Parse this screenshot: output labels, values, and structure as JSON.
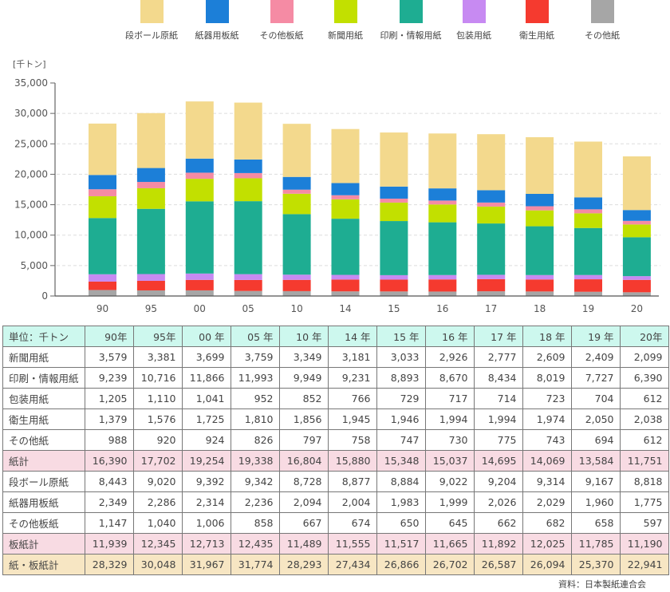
{
  "chart_data": {
    "type": "bar",
    "stacked": true,
    "title": "",
    "xlabel": "",
    "ylabel": "[千トン]",
    "ylim": [
      0,
      35000
    ],
    "yticks": [
      0,
      5000,
      10000,
      15000,
      20000,
      25000,
      30000,
      35000
    ],
    "ytick_labels": [
      "0",
      "5,000",
      "10,000",
      "15,000",
      "20,000",
      "25,000",
      "30,000",
      "35,000"
    ],
    "grid": true,
    "legend_position": "top",
    "categories": [
      "90",
      "95",
      "00",
      "05",
      "10",
      "14",
      "15",
      "16",
      "17",
      "18",
      "19",
      "20"
    ],
    "series": [
      {
        "name": "その他紙",
        "color": "#a6a6a6",
        "values": [
          988,
          920,
          924,
          826,
          797,
          758,
          747,
          730,
          775,
          743,
          694,
          612
        ]
      },
      {
        "name": "衛生用紙",
        "color": "#f53a2f",
        "values": [
          1379,
          1576,
          1725,
          1810,
          1856,
          1945,
          1946,
          1994,
          1994,
          1974,
          2050,
          2038
        ]
      },
      {
        "name": "包装用紙",
        "color": "#c78af2",
        "values": [
          1205,
          1110,
          1041,
          952,
          852,
          766,
          729,
          717,
          714,
          723,
          704,
          612
        ]
      },
      {
        "name": "印刷・情報用紙",
        "color": "#1ead92",
        "values": [
          9239,
          10716,
          11866,
          11993,
          9949,
          9231,
          8893,
          8670,
          8434,
          8019,
          7727,
          6390
        ]
      },
      {
        "name": "新聞用紙",
        "color": "#c2e000",
        "values": [
          3579,
          3381,
          3699,
          3759,
          3349,
          3181,
          3033,
          2926,
          2777,
          2609,
          2409,
          2099
        ]
      },
      {
        "name": "その他板紙",
        "color": "#f58ba4",
        "values": [
          1147,
          1040,
          1006,
          858,
          667,
          674,
          650,
          645,
          662,
          682,
          658,
          597
        ]
      },
      {
        "name": "紙器用板紙",
        "color": "#1c7fd8",
        "values": [
          2349,
          2286,
          2314,
          2236,
          2094,
          2004,
          1983,
          1999,
          2026,
          2029,
          1960,
          1775
        ]
      },
      {
        "name": "段ボール原紙",
        "color": "#f3d98d",
        "values": [
          8443,
          9020,
          9392,
          9342,
          8728,
          8877,
          8884,
          9022,
          9204,
          9314,
          9167,
          8818
        ]
      }
    ]
  },
  "legend": [
    {
      "label": "段ボール原紙",
      "color": "#f3d98d"
    },
    {
      "label": "紙器用板紙",
      "color": "#1c7fd8"
    },
    {
      "label": "その他板紙",
      "color": "#f58ba4"
    },
    {
      "label": "新聞用紙",
      "color": "#c2e000"
    },
    {
      "label": "印刷・情報用紙",
      "color": "#1ead92"
    },
    {
      "label": "包装用紙",
      "color": "#c78af2"
    },
    {
      "label": "衛生用紙",
      "color": "#f53a2f"
    },
    {
      "label": "その他紙",
      "color": "#a6a6a6"
    }
  ],
  "table": {
    "header": [
      "単位：千トン",
      "90年",
      "95年",
      "00 年",
      "05 年",
      "10 年",
      "14 年",
      "15 年",
      "16 年",
      "17 年",
      "18 年",
      "19 年",
      "20年"
    ],
    "rows": [
      {
        "type": "normal",
        "label": "新聞用紙",
        "values": [
          "3,579",
          "3,381",
          "3,699",
          "3,759",
          "3,349",
          "3,181",
          "3,033",
          "2,926",
          "2,777",
          "2,609",
          "2,409",
          "2,099"
        ]
      },
      {
        "type": "normal",
        "label": "印刷・情報用紙",
        "values": [
          "9,239",
          "10,716",
          "11,866",
          "11,993",
          "9,949",
          "9,231",
          "8,893",
          "8,670",
          "8,434",
          "8,019",
          "7,727",
          "6,390"
        ]
      },
      {
        "type": "normal",
        "label": "包装用紙",
        "values": [
          "1,205",
          "1,110",
          "1,041",
          "952",
          "852",
          "766",
          "729",
          "717",
          "714",
          "723",
          "704",
          "612"
        ]
      },
      {
        "type": "normal",
        "label": "衛生用紙",
        "values": [
          "1,379",
          "1,576",
          "1,725",
          "1,810",
          "1,856",
          "1,945",
          "1,946",
          "1,994",
          "1,994",
          "1,974",
          "2,050",
          "2,038"
        ]
      },
      {
        "type": "normal",
        "label": "その他紙",
        "values": [
          "988",
          "920",
          "924",
          "826",
          "797",
          "758",
          "747",
          "730",
          "775",
          "743",
          "694",
          "612"
        ]
      },
      {
        "type": "subtotal",
        "label": "紙計",
        "values": [
          "16,390",
          "17,702",
          "19,254",
          "19,338",
          "16,804",
          "15,880",
          "15,348",
          "15,037",
          "14,695",
          "14,069",
          "13,584",
          "11,751"
        ]
      },
      {
        "type": "normal",
        "label": "段ボール原紙",
        "values": [
          "8,443",
          "9,020",
          "9,392",
          "9,342",
          "8,728",
          "8,877",
          "8,884",
          "9,022",
          "9,204",
          "9,314",
          "9,167",
          "8,818"
        ]
      },
      {
        "type": "normal",
        "label": "紙器用板紙",
        "values": [
          "2,349",
          "2,286",
          "2,314",
          "2,236",
          "2,094",
          "2,004",
          "1,983",
          "1,999",
          "2,026",
          "2,029",
          "1,960",
          "1,775"
        ]
      },
      {
        "type": "normal",
        "label": "その他板紙",
        "values": [
          "1,147",
          "1,040",
          "1,006",
          "858",
          "667",
          "674",
          "650",
          "645",
          "662",
          "682",
          "658",
          "597"
        ]
      },
      {
        "type": "subtotal",
        "label": "板紙計",
        "values": [
          "11,939",
          "12,345",
          "12,713",
          "12,435",
          "11,489",
          "11,555",
          "11,517",
          "11,665",
          "11,892",
          "12,025",
          "11,785",
          "11,190"
        ]
      },
      {
        "type": "total",
        "label": "紙・板紙計",
        "values": [
          "28,329",
          "30,048",
          "31,967",
          "31,774",
          "28,293",
          "27,434",
          "26,866",
          "26,702",
          "26,587",
          "26,094",
          "25,370",
          "22,941"
        ]
      }
    ]
  },
  "source": "資料：日本製紙連合会"
}
